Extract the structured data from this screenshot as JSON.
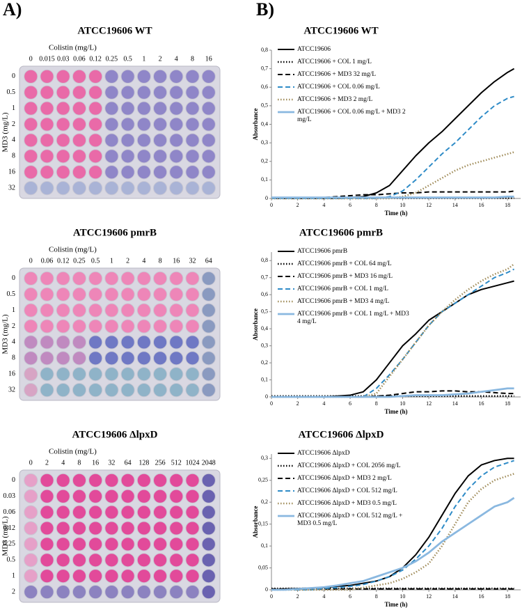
{
  "panel_labels": [
    "A)",
    "B)"
  ],
  "plates": [
    {
      "title": "ATCC19606 WT",
      "x_label": "Colistin (mg/L)",
      "columns": [
        "0",
        "0.015",
        "0.03",
        "0.06",
        "0.12",
        "0.25",
        "0.5",
        "1",
        "2",
        "4",
        "8",
        "16"
      ],
      "y_label": "MD3  (mg/L)",
      "rows": [
        "0",
        "0.5",
        "1",
        "2",
        "4",
        "8",
        "16",
        "32"
      ]
    },
    {
      "title": "ATCC19606 pmrB",
      "x_label": "Colistin (mg/L)",
      "columns": [
        "0",
        "0.06",
        "0.12",
        "0.25",
        "0.5",
        "1",
        "2",
        "4",
        "8",
        "16",
        "32",
        "64"
      ],
      "y_label": "MD3  (mg/L)",
      "rows": [
        "0",
        "0.5",
        "1",
        "2",
        "4",
        "8",
        "16",
        "32"
      ]
    },
    {
      "title": "ATCC19606 ΔlpxD",
      "x_label": "Colistin (mg/L)",
      "columns": [
        "0",
        "2",
        "4",
        "8",
        "16",
        "32",
        "64",
        "128",
        "256",
        "512",
        "1024",
        "2048"
      ],
      "y_label": "MD3  (mg/L)",
      "rows": [
        "0",
        "0.03",
        "0.06",
        "0.12",
        "0.25",
        "0.5",
        "1",
        "2"
      ]
    }
  ],
  "chart_data": [
    {
      "type": "line",
      "title": "ATCC19606 WT",
      "x_label": "Time (h)",
      "y_label": "Absorbance",
      "x": [
        0,
        1,
        2,
        3,
        4,
        5,
        6,
        7,
        8,
        9,
        10,
        11,
        12,
        13,
        14,
        15,
        16,
        17,
        18,
        18.5
      ],
      "xlim": [
        0,
        19
      ],
      "xticks": [
        0,
        2,
        4,
        6,
        8,
        10,
        12,
        14,
        16,
        18
      ],
      "ylim": [
        0,
        0.8
      ],
      "yticks": [
        0,
        {
          "value": 0.1,
          "label": "0,1"
        },
        {
          "value": 0.2,
          "label": "0,2"
        },
        {
          "value": 0.3,
          "label": "0,3"
        },
        {
          "value": 0.4,
          "label": "0,4"
        },
        {
          "value": 0.5,
          "label": "0,5"
        },
        {
          "value": 0.6,
          "label": "0,6"
        },
        {
          "value": 0.7,
          "label": "0,7"
        },
        {
          "value": 0.8,
          "label": "0,8"
        }
      ],
      "series": [
        {
          "name": "ATCC19606",
          "color": "#000000",
          "dash": "solid",
          "values": [
            0,
            0,
            0,
            0,
            0,
            0,
            0.005,
            0.01,
            0.03,
            0.07,
            0.15,
            0.23,
            0.3,
            0.36,
            0.43,
            0.5,
            0.57,
            0.63,
            0.68,
            0.7
          ]
        },
        {
          "name": "ATCC19606 + COL 1 mg/L",
          "color": "#000000",
          "dash": "dotted",
          "values": [
            0.002,
            0.002,
            0.002,
            0.002,
            0.002,
            0.002,
            0.002,
            0.002,
            0.002,
            0.002,
            0.002,
            0.002,
            0.002,
            0.002,
            0.002,
            0.002,
            0.002,
            0.002,
            0.002,
            0.002
          ]
        },
        {
          "name": "ATCC19606 + MD3 32 mg/L",
          "color": "#000000",
          "dash": "dashed",
          "values": [
            0,
            0,
            0,
            0,
            0.005,
            0.01,
            0.015,
            0.02,
            0.02,
            0.025,
            0.03,
            0.03,
            0.035,
            0.035,
            0.035,
            0.035,
            0.035,
            0.035,
            0.035,
            0.04
          ]
        },
        {
          "name": "ATCC19606 + COL 0.06 mg/L",
          "color": "#2e8bc7",
          "dash": "dashed",
          "values": [
            0,
            0,
            0,
            0,
            0,
            0,
            0,
            0,
            0,
            0.01,
            0.04,
            0.1,
            0.17,
            0.24,
            0.3,
            0.37,
            0.44,
            0.5,
            0.54,
            0.55
          ]
        },
        {
          "name": "ATCC19606 + MD3 2 mg/L",
          "color": "#a08c5a",
          "dash": "dotted",
          "values": [
            0,
            0,
            0,
            0,
            0,
            0,
            0,
            0,
            0,
            0,
            0.01,
            0.03,
            0.07,
            0.11,
            0.15,
            0.18,
            0.2,
            0.22,
            0.24,
            0.25
          ]
        },
        {
          "name": "ATCC19606 + COL 0.06 mg/L + MD3 2 mg/L",
          "color": "#8ab8e0",
          "dash": "solid",
          "values": [
            0.005,
            0.005,
            0.005,
            0.005,
            0.005,
            0.005,
            0.005,
            0.005,
            0.005,
            0.005,
            0.005,
            0.005,
            0.005,
            0.005,
            0.005,
            0.005,
            0.005,
            0.005,
            0.01,
            0.01
          ]
        }
      ]
    },
    {
      "type": "line",
      "title": "ATCC19606 pmrB",
      "x_label": "Time (h)",
      "y_label": "Absorbance",
      "x": [
        0,
        1,
        2,
        3,
        4,
        5,
        6,
        7,
        8,
        9,
        10,
        11,
        12,
        13,
        14,
        15,
        16,
        17,
        18,
        18.5
      ],
      "xlim": [
        0,
        19
      ],
      "xticks": [
        0,
        2,
        4,
        6,
        8,
        10,
        12,
        14,
        16,
        18
      ],
      "ylim": [
        0,
        0.85
      ],
      "yticks": [
        0,
        {
          "value": 0.1,
          "label": "0,1"
        },
        {
          "value": 0.2,
          "label": "0,2"
        },
        {
          "value": 0.3,
          "label": "0,3"
        },
        {
          "value": 0.4,
          "label": "0,4"
        },
        {
          "value": 0.5,
          "label": "0,5"
        },
        {
          "value": 0.6,
          "label": "0,6"
        },
        {
          "value": 0.7,
          "label": "0,7"
        },
        {
          "value": 0.8,
          "label": "0,8"
        }
      ],
      "series": [
        {
          "name": "ATCC19606 pmrB",
          "color": "#000000",
          "dash": "solid",
          "values": [
            0,
            0,
            0,
            0,
            0,
            0.005,
            0.01,
            0.03,
            0.1,
            0.2,
            0.3,
            0.37,
            0.45,
            0.5,
            0.55,
            0.6,
            0.63,
            0.65,
            0.67,
            0.68
          ]
        },
        {
          "name": "ATCC19606 pmrB +  COL 64 mg/L",
          "color": "#000000",
          "dash": "dotted",
          "values": [
            0.005,
            0.005,
            0.005,
            0.005,
            0.005,
            0.005,
            0.005,
            0.005,
            0.005,
            0.005,
            0.005,
            0.005,
            0.005,
            0.005,
            0.005,
            0.005,
            0.005,
            0.005,
            0.005,
            0.005
          ]
        },
        {
          "name": "ATCC19606 pmrB + MD3 16 mg/L",
          "color": "#000000",
          "dash": "dashed",
          "values": [
            0,
            0,
            0,
            0,
            0,
            0,
            0,
            0,
            0.005,
            0.01,
            0.02,
            0.03,
            0.03,
            0.035,
            0.035,
            0.03,
            0.03,
            0.025,
            0.02,
            0.02
          ]
        },
        {
          "name": "ATCC19606 pmrB + COL 1 mg/L",
          "color": "#2e8bc7",
          "dash": "dashed",
          "values": [
            0,
            0,
            0,
            0,
            0,
            0,
            0,
            0,
            0.05,
            0.13,
            0.22,
            0.32,
            0.42,
            0.5,
            0.55,
            0.6,
            0.65,
            0.7,
            0.73,
            0.75
          ]
        },
        {
          "name": "ATCC19606 pmrB + MD3 4 mg/L",
          "color": "#a08c5a",
          "dash": "dotted",
          "values": [
            0,
            0,
            0,
            0,
            0,
            0,
            0,
            0,
            0.02,
            0.12,
            0.22,
            0.32,
            0.42,
            0.5,
            0.57,
            0.63,
            0.68,
            0.72,
            0.75,
            0.78
          ]
        },
        {
          "name": "ATCC19606 pmrB + COL 1 mg/L + MD3 4 mg/L",
          "color": "#8ab8e0",
          "dash": "solid",
          "values": [
            0,
            0,
            0,
            0,
            0,
            0,
            0,
            0,
            0,
            0,
            0.005,
            0.01,
            0.01,
            0.01,
            0.015,
            0.02,
            0.03,
            0.04,
            0.05,
            0.05
          ]
        }
      ]
    },
    {
      "type": "line",
      "title": "ATCC19606 ΔlpxD",
      "x_label": "Time (h)",
      "y_label": "Absorbance",
      "x": [
        0,
        1,
        2,
        3,
        4,
        5,
        6,
        7,
        8,
        9,
        10,
        11,
        12,
        13,
        14,
        15,
        16,
        17,
        18,
        18.5
      ],
      "xlim": [
        0,
        19
      ],
      "xticks": [
        0,
        2,
        4,
        6,
        8,
        10,
        12,
        14,
        16,
        18
      ],
      "ylim": [
        0,
        0.31
      ],
      "yticks": [
        0,
        {
          "value": 0.05,
          "label": "0,05"
        },
        {
          "value": 0.1,
          "label": "0,1"
        },
        {
          "value": 0.15,
          "label": "0,15"
        },
        {
          "value": 0.2,
          "label": "0,2"
        },
        {
          "value": 0.25,
          "label": "0,25"
        },
        {
          "value": 0.3,
          "label": "0,3"
        }
      ],
      "series": [
        {
          "name": "ATCC19606 ΔlpxD",
          "color": "#000000",
          "dash": "solid",
          "values": [
            0,
            0.002,
            0.003,
            0.004,
            0.005,
            0.008,
            0.01,
            0.015,
            0.02,
            0.03,
            0.05,
            0.08,
            0.12,
            0.17,
            0.22,
            0.26,
            0.285,
            0.295,
            0.3,
            0.3
          ]
        },
        {
          "name": "ATCC19606 ΔlpxD + COL 2056 mg/L",
          "color": "#000000",
          "dash": "dotted",
          "values": [
            0.003,
            0.003,
            0.003,
            0.003,
            0.003,
            0.003,
            0.003,
            0.003,
            0.003,
            0.003,
            0.003,
            0.003,
            0.003,
            0.003,
            0.003,
            0.003,
            0.003,
            0.003,
            0.003,
            0.003
          ]
        },
        {
          "name": "ATCC19606 ΔlpxD + MD3 2 mg/L",
          "color": "#000000",
          "dash": "dashed",
          "values": [
            0.002,
            0.002,
            0.002,
            0.002,
            0.002,
            0.002,
            0.002,
            0.002,
            0.002,
            0.002,
            0.002,
            0.002,
            0.002,
            0.002,
            0.002,
            0.002,
            0.002,
            0.002,
            0.002,
            0.002
          ]
        },
        {
          "name": "ATCC19606 ΔlpxD + COL 512 mg/L",
          "color": "#2e8bc7",
          "dash": "dashed",
          "values": [
            0,
            0,
            0,
            0,
            0.003,
            0.005,
            0.008,
            0.012,
            0.02,
            0.03,
            0.045,
            0.07,
            0.1,
            0.14,
            0.19,
            0.23,
            0.26,
            0.28,
            0.29,
            0.295
          ]
        },
        {
          "name": "ATCC19606 ΔlpxD + MD3 0.5 mg/L",
          "color": "#a08c5a",
          "dash": "dotted",
          "values": [
            0,
            0,
            0,
            0,
            0,
            0,
            0,
            0.005,
            0.01,
            0.015,
            0.025,
            0.04,
            0.06,
            0.1,
            0.15,
            0.2,
            0.23,
            0.25,
            0.26,
            0.265
          ]
        },
        {
          "name": "ATCC19606 ΔlpxD + COL 512 mg/L + MD3 0.5 mg/L",
          "color": "#8ab8e0",
          "dash": "solid",
          "values": [
            0,
            0,
            0.002,
            0.004,
            0.006,
            0.01,
            0.015,
            0.02,
            0.03,
            0.04,
            0.05,
            0.065,
            0.085,
            0.11,
            0.13,
            0.15,
            0.17,
            0.19,
            0.2,
            0.21
          ]
        }
      ]
    }
  ]
}
